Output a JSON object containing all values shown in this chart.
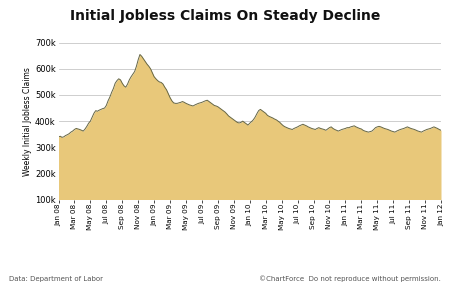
{
  "title": "Initial Jobless Claims On Steady Decline",
  "ylabel": "Weekly Initial Jobless Claims",
  "footer_left": "Data: Department of Labor",
  "footer_right": "©ChartForce  Do not reproduce without permission.",
  "fill_color": "#E8C87A",
  "fill_edge_color": "#888866",
  "line_color": "#666644",
  "bg_color": "#FFFFFF",
  "plot_bg_color": "#FFFFFF",
  "grid_color": "#BBBBBB",
  "ylim": [
    100000,
    700000
  ],
  "yticks": [
    100000,
    200000,
    300000,
    400000,
    500000,
    600000,
    700000
  ],
  "xtick_labels": [
    "Jan 08",
    "Mar 08",
    "May 08",
    "Jul 08",
    "Sep 08",
    "Nov 08",
    "Jan 09",
    "Mar 09",
    "May 09",
    "Jul 09",
    "Sep 09",
    "Nov 09",
    "Jan 10",
    "Mar 10",
    "May 10",
    "Jul 10",
    "Sep 10",
    "Nov 10",
    "Jan 11",
    "Mar 11",
    "May 11",
    "Jul 11",
    "Sep 11",
    "Nov 11",
    "Jan 12"
  ],
  "values": [
    340000,
    342000,
    338000,
    340000,
    345000,
    348000,
    352000,
    358000,
    362000,
    368000,
    372000,
    370000,
    368000,
    365000,
    362000,
    370000,
    380000,
    392000,
    400000,
    415000,
    430000,
    440000,
    438000,
    442000,
    445000,
    448000,
    450000,
    460000,
    478000,
    492000,
    510000,
    525000,
    545000,
    555000,
    562000,
    558000,
    545000,
    535000,
    530000,
    542000,
    558000,
    570000,
    580000,
    590000,
    610000,
    635000,
    655000,
    648000,
    638000,
    628000,
    618000,
    610000,
    600000,
    585000,
    570000,
    562000,
    555000,
    550000,
    548000,
    542000,
    530000,
    520000,
    505000,
    490000,
    478000,
    470000,
    468000,
    468000,
    470000,
    472000,
    475000,
    472000,
    468000,
    465000,
    462000,
    460000,
    458000,
    462000,
    465000,
    468000,
    470000,
    472000,
    475000,
    478000,
    480000,
    475000,
    470000,
    465000,
    460000,
    458000,
    455000,
    450000,
    445000,
    440000,
    435000,
    428000,
    420000,
    415000,
    410000,
    405000,
    400000,
    395000,
    393000,
    395000,
    400000,
    395000,
    390000,
    385000,
    392000,
    398000,
    405000,
    415000,
    428000,
    440000,
    445000,
    440000,
    435000,
    430000,
    422000,
    418000,
    415000,
    412000,
    408000,
    405000,
    400000,
    395000,
    388000,
    382000,
    378000,
    375000,
    372000,
    370000,
    368000,
    372000,
    375000,
    378000,
    382000,
    385000,
    388000,
    385000,
    382000,
    378000,
    375000,
    372000,
    370000,
    368000,
    372000,
    375000,
    372000,
    370000,
    368000,
    365000,
    370000,
    375000,
    378000,
    372000,
    368000,
    365000,
    362000,
    365000,
    368000,
    370000,
    372000,
    375000,
    375000,
    378000,
    380000,
    382000,
    378000,
    375000,
    372000,
    370000,
    365000,
    362000,
    360000,
    358000,
    360000,
    362000,
    368000,
    375000,
    378000,
    380000,
    378000,
    375000,
    372000,
    370000,
    368000,
    365000,
    362000,
    360000,
    358000,
    362000,
    365000,
    368000,
    370000,
    372000,
    375000,
    378000,
    375000,
    372000,
    370000,
    368000,
    365000,
    362000,
    360000,
    358000,
    362000,
    365000,
    368000,
    370000,
    372000,
    375000,
    378000,
    375000,
    372000,
    368000,
    365000
  ]
}
